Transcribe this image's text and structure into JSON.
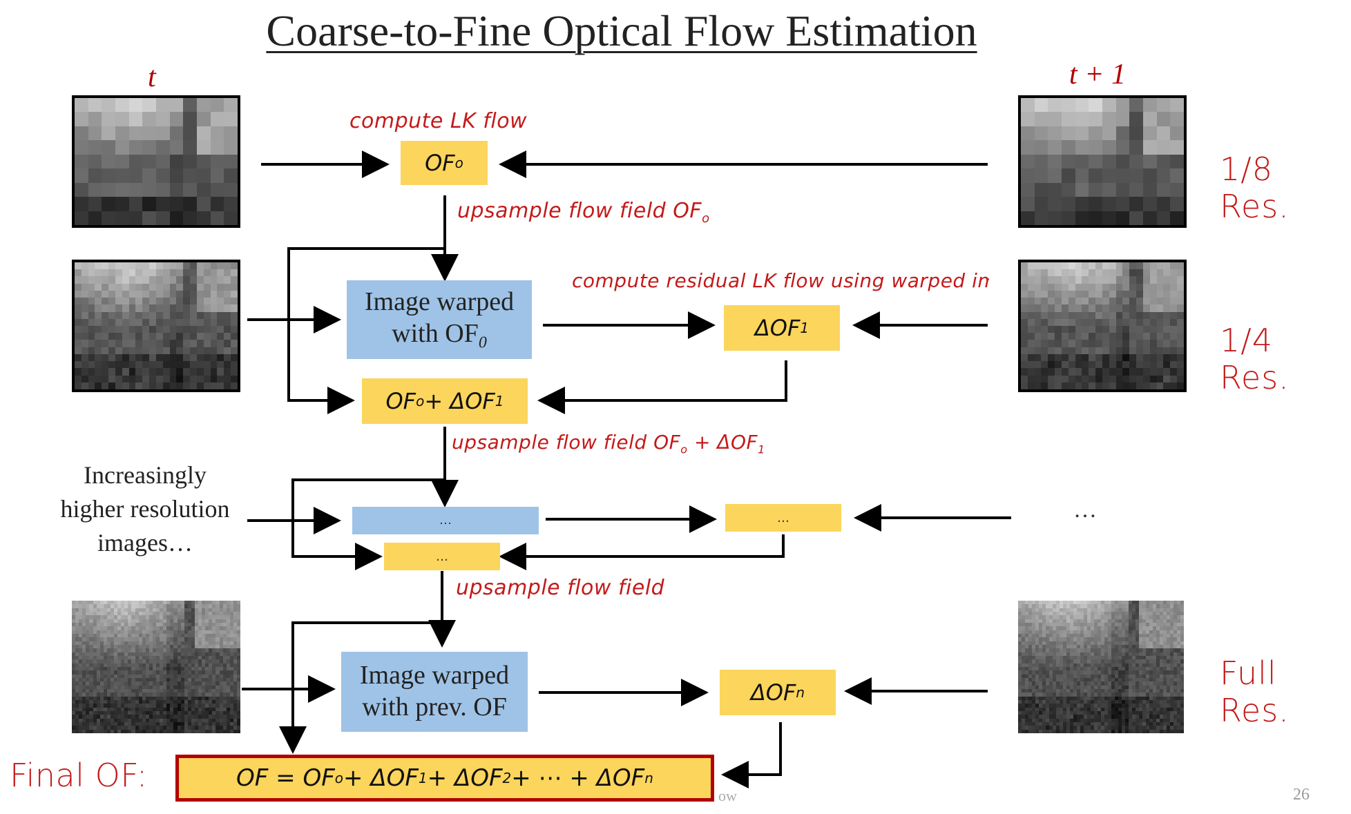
{
  "title": "Coarse-to-Fine Optical Flow Estimation",
  "frame_labels": {
    "left": "t",
    "right": "t + 1"
  },
  "resolutions": {
    "r8": "1/8 Res.",
    "r4": "1/4 Res.",
    "full": "Full Res."
  },
  "annotations": {
    "compute_lk": "compute LK flow",
    "upsample1": "upsample flow field OF",
    "upsample1_sub": "o",
    "residual": "compute residual LK flow using warped image",
    "upsample2": "upsample flow field OF",
    "upsample2_sub": "o",
    "upsample2_rest": " + ΔOF",
    "upsample2_sub2": "1",
    "upsample3": "upsample flow field"
  },
  "boxes": {
    "of0": "OF",
    "of0_sub": "o",
    "warp1_line1": "Image warped",
    "warp1_line2": "with OF",
    "warp1_sub": "0",
    "dof1": "ΔOF",
    "dof1_sub": "1",
    "sum1": "OF",
    "sum1_sub": "o",
    "sum1_rest": " + ΔOF",
    "sum1_sub2": "1",
    "mid_blue": "…",
    "mid_yellow": "…",
    "mid_sum": "…",
    "warpn_line1": "Image warped",
    "warpn_line2": "with prev. OF",
    "dofn": "ΔOF",
    "dofn_sub": "n",
    "final": "OF = OF",
    "final_sub_o": "o",
    "final_p1": " + ΔOF",
    "final_sub_1": "1",
    "final_p2": " + ΔOF",
    "final_sub_2": "2",
    "final_p3": " + ⋯ + ΔOF",
    "final_sub_n": "n"
  },
  "side_text": {
    "line1": "Increasingly",
    "line2": "higher resolution",
    "line3": "images…",
    "right_dots": "…"
  },
  "final_label": "Final OF:",
  "footer": {
    "center": "ow",
    "page": "26"
  }
}
